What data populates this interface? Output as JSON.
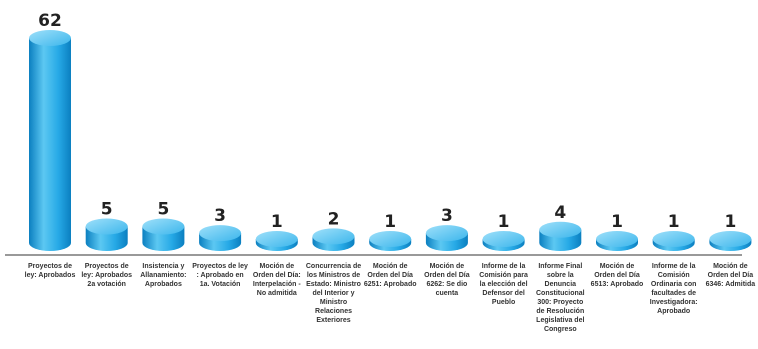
{
  "chart_data": {
    "type": "bar",
    "categories": [
      "Proyectos de ley: Aprobados",
      "Proyectos de ley: Aprobados 2a votación",
      "Insistencia y Allanamiento: Aprobados",
      "Proyectos de ley : Aprobado en 1a. Votación",
      "Moción de Orden del Día: Interpelación - No admitida",
      "Concurrencia de los Ministros de Estado: Ministro del Interior y Ministro Relaciones Exteriores",
      "Moción de Orden del Día 6251: Aprobado",
      "Moción de Orden del Día 6262: Se dio cuenta",
      "Informe de la Comisión para la elección del Defensor del Pueblo",
      "Informe Final sobre la Denuncia Constitucional 300: Proyecto de Resolución Legislativa del Congreso",
      "Moción de Orden del Día 6513: Aprobado",
      "Informe de la Comisión Ordinaria con facultades de Investigadora: Aprobado",
      "Moción de Orden del Día 6346: Admitida"
    ],
    "values": [
      62,
      5,
      5,
      3,
      1,
      2,
      1,
      3,
      1,
      4,
      1,
      1,
      1
    ],
    "title": "",
    "xlabel": "",
    "ylabel": "",
    "ylim": [
      0,
      62
    ],
    "grid": false,
    "legend": "none",
    "colors": {
      "bar_light": "#5cc8f2",
      "bar_mid": "#26a9e6",
      "bar_dark": "#0b7fc0",
      "bar_top": "#7fd6f7",
      "axis": "#333333"
    }
  }
}
